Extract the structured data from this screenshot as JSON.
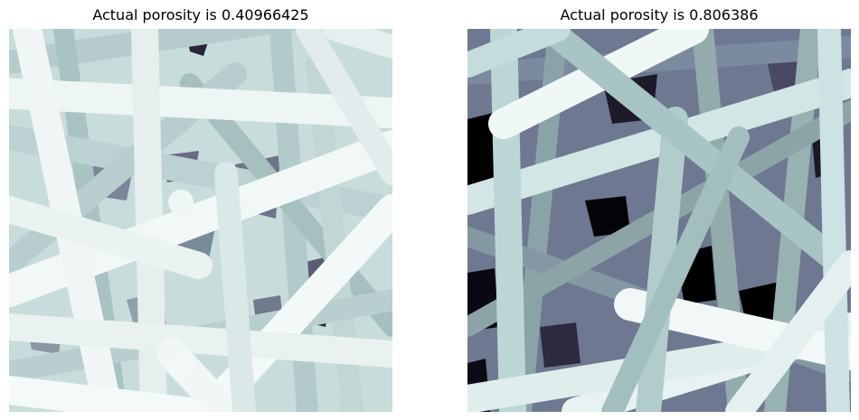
{
  "figure": {
    "panels": [
      {
        "title": "Actual porosity is 0.40966425",
        "image": {
          "description": "fibrous mat rendered with bone colormap, dense packing of light fibers",
          "colormap": "bone",
          "palette": [
            "#f2f8f8",
            "#e4eeee",
            "#cfe0e0",
            "#b4cccc",
            "#9eb6b6",
            "#7d8a9e",
            "#4f4e68",
            "#1f1a2a"
          ]
        }
      },
      {
        "title": "Actual porosity is 0.806386",
        "image": {
          "description": "fibrous mat rendered with bone colormap, sparse packing with dark voids",
          "colormap": "bone",
          "palette": [
            "#e8f2f2",
            "#c4dcdc",
            "#a8c4c4",
            "#8aa3a8",
            "#6e788e",
            "#4a4964",
            "#252236",
            "#000000"
          ]
        }
      }
    ]
  }
}
